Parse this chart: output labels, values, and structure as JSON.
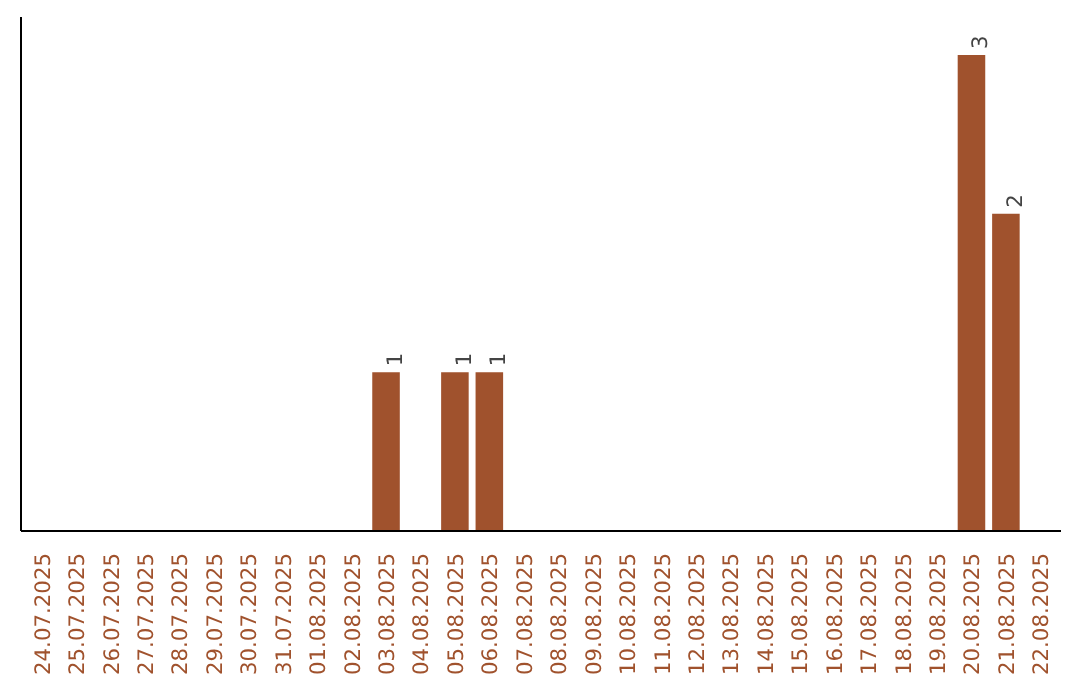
{
  "chart_data": {
    "type": "bar",
    "categories": [
      "24.07.2025",
      "25.07.2025",
      "26.07.2025",
      "27.07.2025",
      "28.07.2025",
      "29.07.2025",
      "30.07.2025",
      "31.07.2025",
      "01.08.2025",
      "02.08.2025",
      "03.08.2025",
      "04.08.2025",
      "05.08.2025",
      "06.08.2025",
      "07.08.2025",
      "08.08.2025",
      "09.08.2025",
      "10.08.2025",
      "11.08.2025",
      "12.08.2025",
      "13.08.2025",
      "14.08.2025",
      "15.08.2025",
      "16.08.2025",
      "17.08.2025",
      "18.08.2025",
      "19.08.2025",
      "20.08.2025",
      "21.08.2025",
      "22.08.2025"
    ],
    "values": [
      0,
      0,
      0,
      0,
      0,
      0,
      0,
      0,
      0,
      0,
      1,
      0,
      1,
      1,
      0,
      0,
      0,
      0,
      0,
      0,
      0,
      0,
      0,
      0,
      0,
      0,
      0,
      3,
      2,
      0
    ],
    "value_labels": [
      null,
      null,
      null,
      null,
      null,
      null,
      null,
      null,
      null,
      null,
      "1",
      null,
      "1",
      "1",
      null,
      null,
      null,
      null,
      null,
      null,
      null,
      null,
      null,
      null,
      null,
      null,
      null,
      "3",
      "2",
      null
    ],
    "color": "#a0522d",
    "grid": false,
    "tick_labels": "x"
  }
}
